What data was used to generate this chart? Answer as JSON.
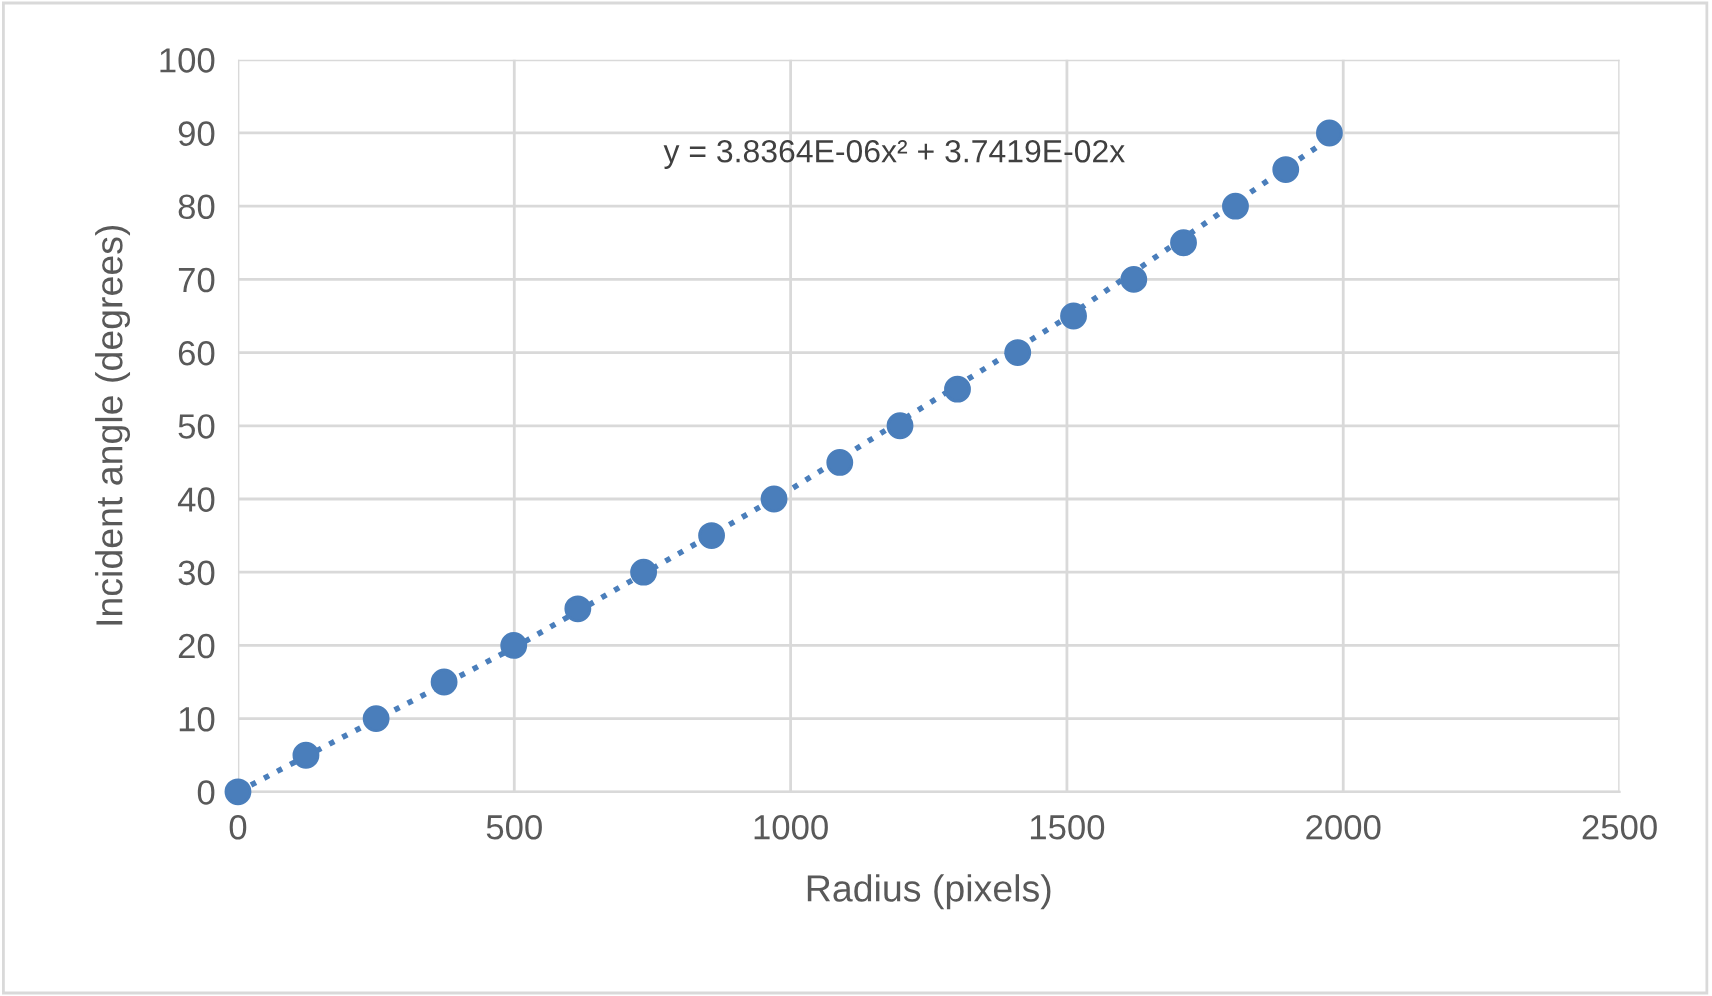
{
  "chart_data": {
    "type": "scatter",
    "xlabel": "Radius (pixels)",
    "ylabel": "Incident angle (degrees)",
    "annotations": [
      "y = 3.8364E-06x² + 3.7419E-02x"
    ],
    "series": [
      {
        "color": "#4a7ebb",
        "marker": "circle",
        "x": [
          0,
          123,
          250,
          373,
          499,
          615,
          734,
          857,
          970,
          1089,
          1198,
          1302,
          1411,
          1512,
          1621,
          1711,
          1805,
          1896,
          1975
        ],
        "values": [
          0,
          5,
          10,
          15,
          20,
          25,
          30,
          35,
          40,
          45,
          50,
          55,
          60,
          65,
          70,
          75,
          80,
          85,
          90
        ]
      },
      {
        "type": "line",
        "color": "#4a7ebb",
        "line_style": "dotted",
        "marker": "none",
        "x": [
          0,
          500,
          1000,
          1500,
          1990
        ],
        "values": [
          0,
          19.7,
          41.3,
          64.8,
          90.0
        ]
      }
    ],
    "xlim": [
      0,
      2500
    ],
    "xticks": [
      0,
      500,
      1000,
      1500,
      2000,
      2500
    ],
    "ylim": [
      0,
      100
    ],
    "yticks": [
      0,
      10,
      20,
      30,
      40,
      50,
      60,
      70,
      80,
      90,
      100
    ],
    "grid": true,
    "legend": false
  }
}
